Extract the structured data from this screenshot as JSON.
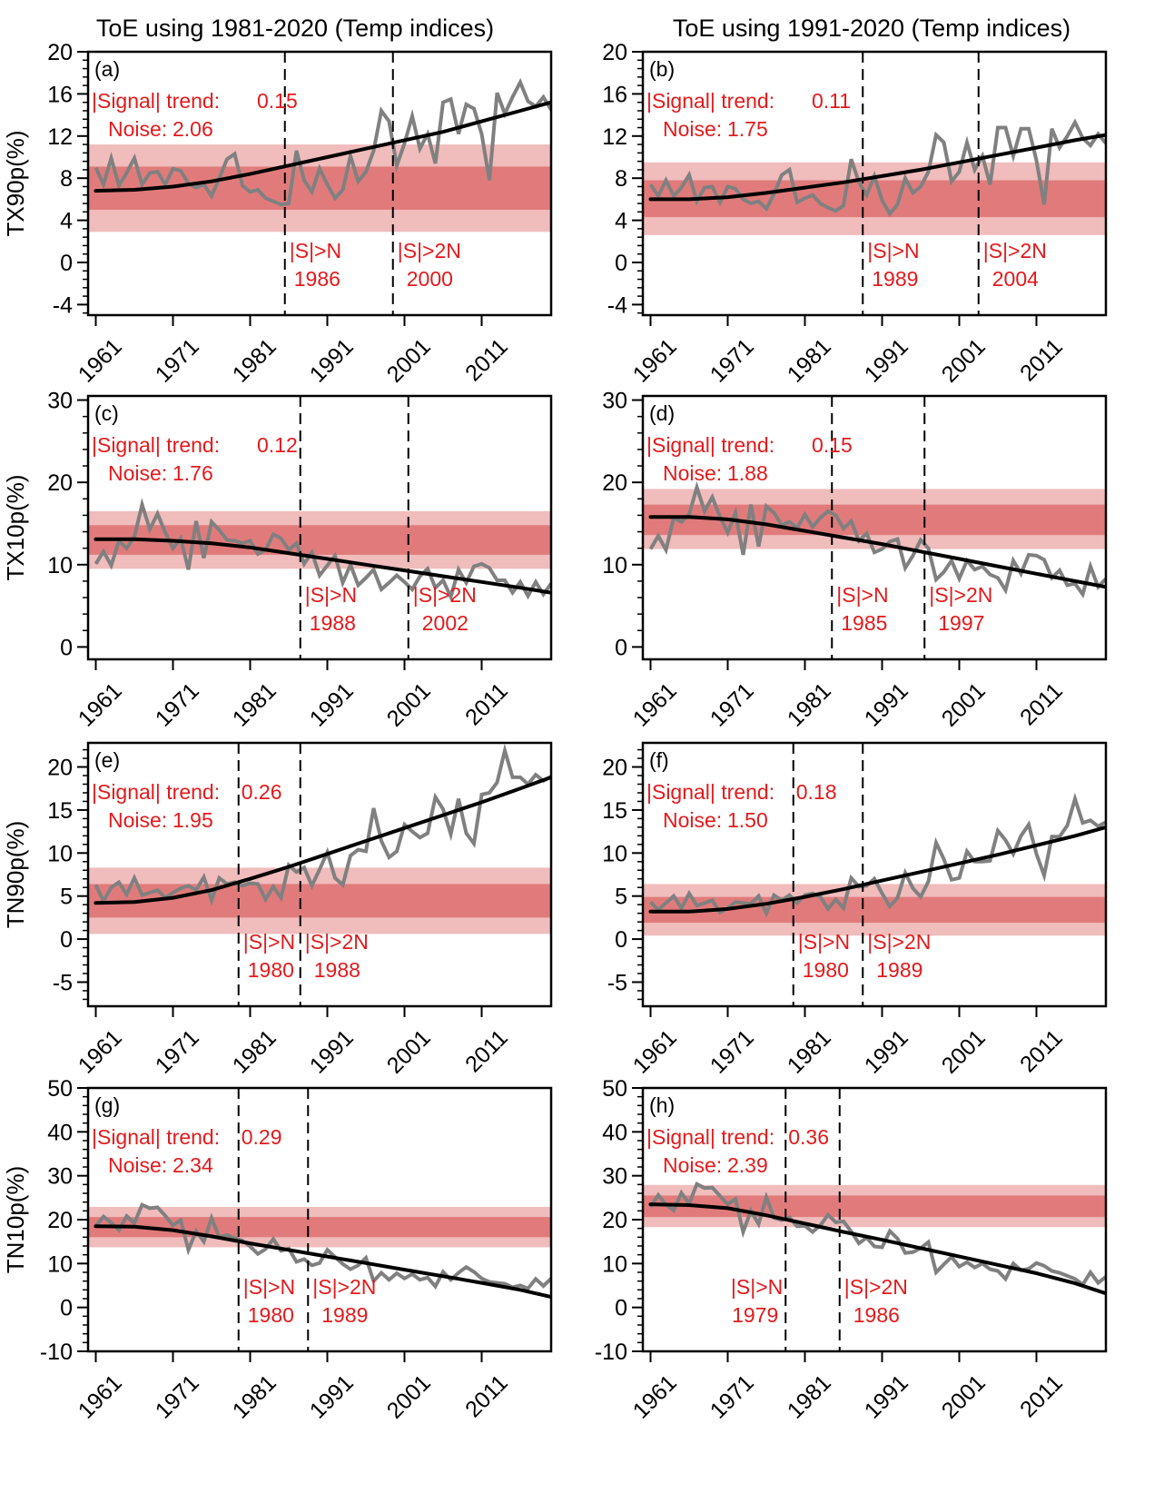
{
  "figure": {
    "column_titles": [
      "ToE using 1981-2020 (Temp indices)",
      "ToE using 1991-2020 (Temp indices)"
    ],
    "colors": {
      "observed_line": "#808080",
      "trend_line": "#000000",
      "inner_band": "#e17b7b",
      "outer_band": "#f0bcbc",
      "annotation": "#e31a1c",
      "toe_line": "#000000"
    }
  },
  "chart_data": [
    {
      "panel": "(a)",
      "type": "line",
      "column": 0,
      "row": 0,
      "ylabel": "TX90p(%)",
      "xlabel": "",
      "x_ticks": [
        1961,
        1971,
        1981,
        1991,
        2001,
        2011
      ],
      "xlim": [
        1960,
        2020
      ],
      "ylim": [
        -5,
        20
      ],
      "y_ticks": [
        -4,
        0,
        4,
        8,
        12,
        16,
        20
      ],
      "signal_trend": "0.15",
      "noise": "2.06",
      "inner_band": [
        5.0,
        9.1
      ],
      "outer_band": [
        2.9,
        11.2
      ],
      "toe_n": 1986,
      "toe_2n": 2000,
      "toe_n_line_x": 1985.5,
      "toe_2n_line_x": 1999.5,
      "trend": {
        "x": [
          1961,
          1966,
          1971,
          1976,
          1981,
          1986,
          1991,
          1996,
          2001,
          2006,
          2011,
          2016,
          2020
        ],
        "y": [
          6.8,
          6.9,
          7.2,
          7.7,
          8.4,
          9.2,
          10.0,
          10.8,
          11.6,
          12.4,
          13.4,
          14.4,
          15.2
        ]
      },
      "series": [
        {
          "name": "observed",
          "x_start": 1961,
          "values": [
            9.0,
            7.4,
            9.9,
            7.3,
            8.5,
            9.9,
            7.4,
            8.5,
            8.6,
            7.4,
            8.9,
            8.7,
            7.5,
            7.1,
            7.4,
            6.3,
            8.0,
            9.8,
            10.3,
            7.3,
            6.7,
            6.9,
            6.1,
            5.8,
            5.5,
            5.6,
            10.6,
            7.8,
            6.7,
            8.9,
            7.4,
            6.1,
            6.9,
            10.1,
            7.7,
            8.6,
            10.6,
            14.4,
            13.4,
            9.2,
            11.3,
            13.9,
            10.8,
            12.2,
            9.4,
            15.2,
            15.5,
            12.2,
            15.0,
            14.6,
            12.2,
            7.8,
            16.1,
            14.1,
            15.7,
            17.1,
            15.3,
            14.8,
            15.7,
            14.5
          ]
        }
      ]
    },
    {
      "panel": "(b)",
      "type": "line",
      "column": 1,
      "row": 0,
      "ylabel": "",
      "xlabel": "",
      "x_ticks": [
        1961,
        1971,
        1981,
        1991,
        2001,
        2011
      ],
      "xlim": [
        1960,
        2020
      ],
      "ylim": [
        -5,
        20
      ],
      "y_ticks": [
        -4,
        0,
        4,
        8,
        12,
        16,
        20
      ],
      "signal_trend": "0.11",
      "noise": "1.75",
      "inner_band": [
        4.3,
        7.8
      ],
      "outer_band": [
        2.6,
        9.5
      ],
      "toe_n": 1989,
      "toe_2n": 2004,
      "toe_n_line_x": 1988.5,
      "toe_2n_line_x": 2003.5,
      "trend": {
        "x": [
          1961,
          1966,
          1971,
          1976,
          1981,
          1986,
          1991,
          1996,
          2001,
          2006,
          2011,
          2016,
          2020
        ],
        "y": [
          6.0,
          6.0,
          6.2,
          6.6,
          7.1,
          7.6,
          8.2,
          8.8,
          9.5,
          10.2,
          10.9,
          11.6,
          12.1
        ]
      },
      "series": [
        {
          "name": "observed",
          "x_start": 1961,
          "values": [
            7.4,
            6.3,
            7.8,
            6.3,
            7.1,
            8.3,
            5.8,
            7.1,
            7.2,
            5.7,
            7.2,
            7.0,
            6.0,
            5.6,
            5.8,
            5.1,
            6.5,
            8.3,
            8.8,
            5.7,
            6.1,
            6.4,
            5.6,
            5.2,
            4.9,
            5.4,
            9.8,
            7.6,
            6.4,
            8.2,
            5.9,
            4.6,
            5.5,
            8.0,
            6.6,
            7.2,
            8.6,
            12.1,
            11.4,
            7.7,
            8.6,
            11.4,
            8.8,
            10.1,
            7.4,
            12.8,
            12.8,
            10.1,
            12.7,
            12.7,
            9.7,
            5.5,
            12.7,
            10.9,
            12.0,
            13.3,
            11.8,
            11.1,
            12.2,
            11.3
          ]
        }
      ]
    },
    {
      "panel": "(c)",
      "type": "line",
      "column": 0,
      "row": 1,
      "ylabel": "TX10p(%)",
      "xlabel": "",
      "x_ticks": [
        1961,
        1971,
        1981,
        1991,
        2001,
        2011
      ],
      "xlim": [
        1960,
        2020
      ],
      "ylim": [
        -1.5,
        30.5
      ],
      "y_ticks": [
        0,
        10,
        20,
        30
      ],
      "signal_trend": "0.12",
      "noise": "1.76",
      "inner_band": [
        11.2,
        14.8
      ],
      "outer_band": [
        9.5,
        16.5
      ],
      "toe_n": 1988,
      "toe_2n": 2002,
      "toe_n_line_x": 1987.5,
      "toe_2n_line_x": 2001.5,
      "trend": {
        "x": [
          1961,
          1966,
          1971,
          1976,
          1981,
          1986,
          1991,
          1996,
          2001,
          2006,
          2011,
          2016,
          2020
        ],
        "y": [
          13.1,
          13.1,
          12.9,
          12.6,
          12.1,
          11.4,
          10.7,
          10.0,
          9.3,
          8.6,
          7.9,
          7.2,
          6.6
        ]
      },
      "series": [
        {
          "name": "observed",
          "x_start": 1961,
          "values": [
            10.1,
            11.6,
            9.9,
            12.9,
            12.0,
            13.4,
            17.3,
            14.3,
            16.2,
            13.9,
            12.0,
            13.2,
            9.4,
            15.3,
            10.8,
            15.2,
            14.2,
            13.0,
            12.9,
            12.6,
            12.9,
            11.3,
            11.8,
            13.7,
            13.2,
            11.8,
            12.6,
            10.1,
            11.5,
            8.7,
            9.9,
            11.1,
            7.8,
            10.0,
            7.5,
            8.4,
            9.4,
            7.0,
            7.8,
            8.7,
            7.9,
            7.0,
            8.6,
            9.5,
            7.2,
            8.1,
            6.1,
            9.4,
            7.8,
            9.8,
            10.1,
            9.6,
            8.1,
            8.1,
            6.6,
            7.9,
            6.2,
            7.9,
            6.4,
            7.7
          ]
        }
      ]
    },
    {
      "panel": "(d)",
      "type": "line",
      "column": 1,
      "row": 1,
      "ylabel": "",
      "xlabel": "",
      "x_ticks": [
        1961,
        1971,
        1981,
        1991,
        2001,
        2011
      ],
      "xlim": [
        1960,
        2020
      ],
      "ylim": [
        -1.5,
        30.5
      ],
      "y_ticks": [
        0,
        10,
        20,
        30
      ],
      "signal_trend": "0.15",
      "noise": "1.88",
      "inner_band": [
        13.6,
        17.3
      ],
      "outer_band": [
        11.9,
        19.2
      ],
      "toe_n": 1985,
      "toe_2n": 1997,
      "toe_n_line_x": 1984.5,
      "toe_2n_line_x": 1996.5,
      "trend": {
        "x": [
          1961,
          1966,
          1971,
          1976,
          1981,
          1986,
          1991,
          1996,
          2001,
          2006,
          2011,
          2016,
          2020
        ],
        "y": [
          15.8,
          15.8,
          15.5,
          14.9,
          14.1,
          13.3,
          12.5,
          11.6,
          10.7,
          9.8,
          8.9,
          8.0,
          7.3
        ]
      },
      "series": [
        {
          "name": "observed",
          "x_start": 1961,
          "values": [
            11.9,
            13.5,
            11.8,
            15.7,
            15.2,
            16.1,
            19.4,
            16.5,
            18.2,
            15.8,
            13.9,
            16.3,
            11.2,
            17.3,
            12.2,
            17.1,
            16.3,
            14.8,
            15.2,
            14.5,
            16.1,
            14.6,
            15.7,
            16.5,
            16.0,
            14.4,
            15.3,
            12.9,
            13.8,
            11.5,
            11.9,
            12.8,
            13.1,
            9.6,
            11.1,
            13.0,
            12.0,
            8.2,
            9.1,
            10.5,
            8.3,
            10.5,
            9.4,
            9.8,
            8.8,
            8.4,
            6.9,
            10.5,
            8.9,
            11.2,
            11.1,
            10.6,
            8.4,
            9.3,
            7.5,
            7.7,
            6.4,
            9.8,
            7.3,
            8.3
          ]
        }
      ]
    },
    {
      "panel": "(e)",
      "type": "line",
      "column": 0,
      "row": 2,
      "ylabel": "TN90p(%)",
      "xlabel": "",
      "x_ticks": [
        1961,
        1971,
        1981,
        1991,
        2001,
        2011
      ],
      "xlim": [
        1960,
        2020
      ],
      "ylim": [
        -7.8,
        22.8
      ],
      "y_ticks": [
        -5,
        0,
        5,
        10,
        15,
        20
      ],
      "signal_trend": "0.26",
      "noise": "1.95",
      "inner_band": [
        2.5,
        6.4
      ],
      "outer_band": [
        0.6,
        8.3
      ],
      "toe_n": 1980,
      "toe_2n": 1988,
      "toe_n_line_x": 1979.5,
      "toe_2n_line_x": 1987.5,
      "trend": {
        "x": [
          1961,
          1966,
          1971,
          1976,
          1981,
          1986,
          1991,
          1996,
          2001,
          2006,
          2011,
          2016,
          2020
        ],
        "y": [
          4.2,
          4.3,
          4.8,
          5.7,
          7.0,
          8.4,
          9.9,
          11.4,
          12.9,
          14.4,
          15.9,
          17.5,
          18.8
        ]
      },
      "series": [
        {
          "name": "observed",
          "x_start": 1961,
          "values": [
            6.3,
            4.4,
            6.0,
            6.6,
            5.2,
            7.1,
            5.1,
            5.4,
            5.7,
            4.8,
            5.4,
            5.9,
            6.2,
            5.7,
            7.2,
            4.5,
            7.1,
            6.4,
            6.6,
            6.2,
            6.5,
            6.4,
            4.6,
            6.1,
            4.8,
            8.6,
            7.8,
            8.3,
            6.2,
            8.1,
            10.1,
            7.1,
            6.3,
            9.7,
            10.4,
            10.2,
            15.2,
            11.4,
            9.5,
            10.2,
            13.3,
            12.5,
            11.8,
            12.3,
            16.5,
            15.1,
            12.2,
            16.3,
            12.3,
            11.1,
            16.8,
            17.0,
            18.2,
            21.9,
            18.8,
            18.8,
            18.0,
            19.1,
            18.4,
            18.9
          ]
        }
      ]
    },
    {
      "panel": "(f)",
      "type": "line",
      "column": 1,
      "row": 2,
      "ylabel": "",
      "xlabel": "",
      "x_ticks": [
        1961,
        1971,
        1981,
        1991,
        2001,
        2011
      ],
      "xlim": [
        1960,
        2020
      ],
      "ylim": [
        -7.8,
        22.8
      ],
      "y_ticks": [
        -5,
        0,
        5,
        10,
        15,
        20
      ],
      "signal_trend": "0.18",
      "noise": "1.50",
      "inner_band": [
        1.9,
        4.9
      ],
      "outer_band": [
        0.4,
        6.4
      ],
      "toe_n": 1980,
      "toe_2n": 1989,
      "toe_n_line_x": 1979.5,
      "toe_2n_line_x": 1988.5,
      "trend": {
        "x": [
          1961,
          1966,
          1971,
          1976,
          1981,
          1986,
          1991,
          1996,
          2001,
          2006,
          2011,
          2016,
          2020
        ],
        "y": [
          3.2,
          3.2,
          3.5,
          4.1,
          4.9,
          5.8,
          6.8,
          7.8,
          8.8,
          9.8,
          10.9,
          12.0,
          13.0
        ]
      },
      "series": [
        {
          "name": "observed",
          "x_start": 1961,
          "values": [
            4.3,
            3.4,
            4.2,
            5.0,
            3.6,
            5.3,
            3.9,
            4.2,
            4.5,
            3.1,
            3.6,
            4.3,
            4.2,
            4.1,
            5.0,
            3.0,
            5.1,
            4.5,
            5.1,
            4.2,
            5.1,
            5.3,
            4.9,
            3.5,
            4.6,
            3.6,
            7.1,
            6.1,
            6.2,
            7.0,
            5.3,
            3.8,
            4.8,
            7.7,
            5.9,
            4.9,
            6.7,
            11.2,
            9.3,
            6.9,
            7.1,
            10.2,
            9.0,
            9.0,
            9.1,
            12.6,
            11.5,
            9.9,
            12.0,
            13.3,
            9.9,
            7.4,
            11.9,
            11.9,
            13.2,
            16.3,
            13.5,
            13.8,
            13.1,
            13.6
          ]
        }
      ]
    },
    {
      "panel": "(g)",
      "type": "line",
      "column": 0,
      "row": 3,
      "ylabel": "TN10p(%)",
      "xlabel": "",
      "x_ticks": [
        1961,
        1971,
        1981,
        1991,
        2001,
        2011
      ],
      "xlim": [
        1960,
        2020
      ],
      "ylim": [
        -10,
        50
      ],
      "y_ticks": [
        -10,
        0,
        10,
        20,
        30,
        40,
        50
      ],
      "signal_trend": "0.29",
      "noise": "2.34",
      "inner_band": [
        16.0,
        20.6
      ],
      "outer_band": [
        13.7,
        22.9
      ],
      "toe_n": 1980,
      "toe_2n": 1989,
      "toe_n_line_x": 1979.5,
      "toe_2n_line_x": 1988.5,
      "trend": {
        "x": [
          1961,
          1966,
          1971,
          1976,
          1981,
          1986,
          1991,
          1996,
          2001,
          2006,
          2011,
          2016,
          2020
        ],
        "y": [
          18.5,
          18.4,
          17.6,
          16.2,
          14.6,
          13.1,
          11.6,
          10.1,
          8.6,
          7.1,
          5.6,
          4.0,
          2.4
        ]
      },
      "series": [
        {
          "name": "observed",
          "x_start": 1961,
          "values": [
            18.6,
            20.7,
            19.3,
            17.6,
            20.8,
            19.2,
            23.4,
            22.6,
            22.8,
            20.9,
            18.7,
            19.9,
            13.1,
            17.4,
            15.0,
            20.4,
            16.0,
            16.5,
            15.8,
            15.2,
            13.9,
            12.2,
            13.3,
            15.6,
            12.9,
            13.4,
            10.4,
            11.0,
            9.6,
            10.1,
            13.1,
            11.5,
            9.9,
            8.7,
            9.6,
            11.3,
            6.0,
            7.9,
            6.3,
            7.8,
            6.6,
            7.6,
            6.3,
            6.8,
            4.8,
            8.1,
            6.3,
            7.9,
            9.2,
            8.1,
            6.6,
            5.8,
            5.6,
            5.4,
            4.6,
            5.0,
            4.3,
            6.5,
            4.9,
            6.6
          ]
        }
      ]
    },
    {
      "panel": "(h)",
      "type": "line",
      "column": 1,
      "row": 3,
      "ylabel": "",
      "xlabel": "",
      "x_ticks": [
        1961,
        1971,
        1981,
        1991,
        2001,
        2011
      ],
      "xlim": [
        1960,
        2020
      ],
      "ylim": [
        -10,
        50
      ],
      "y_ticks": [
        -10,
        0,
        10,
        20,
        30,
        40,
        50
      ],
      "signal_trend": "0.36",
      "noise": "2.39",
      "inner_band": [
        20.6,
        25.5
      ],
      "outer_band": [
        18.3,
        27.9
      ],
      "toe_n": 1979,
      "toe_2n": 1986,
      "toe_n_line_x": 1978.5,
      "toe_2n_line_x": 1985.5,
      "trend": {
        "x": [
          1961,
          1966,
          1971,
          1976,
          1981,
          1986,
          1991,
          1996,
          2001,
          2006,
          2011,
          2016,
          2020
        ],
        "y": [
          23.5,
          23.3,
          22.6,
          21.0,
          19.1,
          17.2,
          15.4,
          13.5,
          11.6,
          9.7,
          7.8,
          5.5,
          3.2
        ]
      },
      "series": [
        {
          "name": "observed",
          "x_start": 1961,
          "values": [
            22.9,
            25.6,
            23.4,
            22.1,
            26.1,
            23.6,
            28.1,
            27.2,
            27.3,
            25.4,
            23.5,
            24.7,
            17.2,
            22.0,
            19.0,
            25.1,
            20.4,
            19.9,
            20.5,
            18.5,
            18.6,
            17.2,
            18.7,
            21.1,
            19.4,
            19.6,
            17.3,
            14.6,
            15.9,
            13.9,
            13.7,
            17.4,
            15.7,
            12.4,
            12.6,
            13.5,
            14.9,
            8.0,
            9.8,
            11.5,
            9.3,
            10.3,
            9.1,
            10.0,
            8.7,
            8.3,
            6.5,
            10.0,
            8.5,
            8.8,
            10.1,
            9.5,
            8.3,
            7.9,
            7.2,
            6.5,
            5.2,
            8.0,
            5.6,
            7.0
          ]
        }
      ]
    }
  ]
}
